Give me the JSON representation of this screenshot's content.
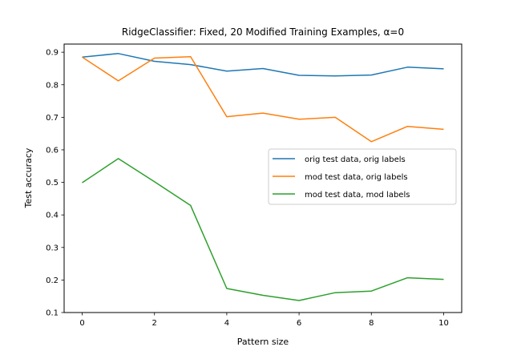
{
  "chart_data": {
    "type": "line",
    "title": "RidgeClassifier: Fixed, 20 Modified Training Examples, α=0",
    "xlabel": "Pattern size",
    "ylabel": "Test accuracy",
    "x": [
      0,
      1,
      2,
      3,
      4,
      5,
      6,
      7,
      8,
      9,
      10
    ],
    "xlim": [
      -0.5,
      10.5
    ],
    "ylim": [
      0.1,
      0.925
    ],
    "xticks": [
      0,
      2,
      4,
      6,
      8,
      10
    ],
    "yticks": [
      0.1,
      0.2,
      0.3,
      0.4,
      0.5,
      0.6,
      0.7,
      0.8,
      0.9
    ],
    "xtick_labels": [
      "0",
      "2",
      "4",
      "6",
      "8",
      "10"
    ],
    "ytick_labels": [
      "0.1",
      "0.2",
      "0.3",
      "0.4",
      "0.5",
      "0.6",
      "0.7",
      "0.8",
      "0.9"
    ],
    "grid": false,
    "legend_position": "center-right",
    "series": [
      {
        "name": "orig test data, orig labels",
        "color": "#1f77b4",
        "values": [
          0.885,
          0.896,
          0.872,
          0.862,
          0.842,
          0.85,
          0.829,
          0.827,
          0.83,
          0.854,
          0.849
        ]
      },
      {
        "name": "mod test data, orig labels",
        "color": "#ff7f0e",
        "values": [
          0.885,
          0.812,
          0.882,
          0.886,
          0.702,
          0.713,
          0.694,
          0.7,
          0.625,
          0.672,
          0.663
        ]
      },
      {
        "name": "mod test data, mod labels",
        "color": "#2ca02c",
        "values": [
          0.499,
          0.573,
          0.502,
          0.429,
          0.174,
          0.153,
          0.137,
          0.161,
          0.166,
          0.207,
          0.202
        ]
      }
    ]
  }
}
